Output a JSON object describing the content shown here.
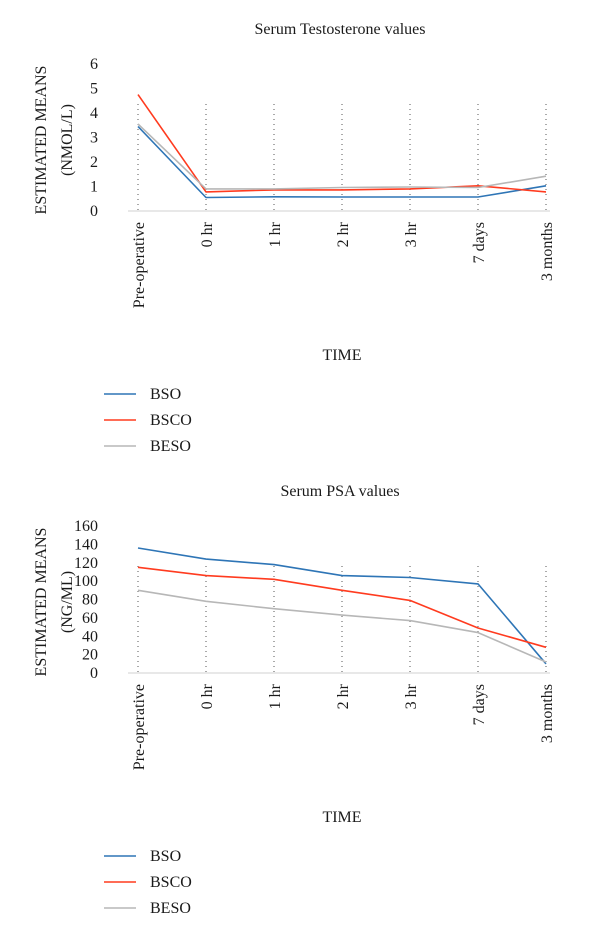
{
  "chart_data": [
    {
      "type": "line",
      "title": "Serum Testosterone values",
      "ylabel": [
        "ESTIMATED MEANS",
        "(NMOL/L)"
      ],
      "xlabel": "TIME",
      "categories": [
        "Pre-operative",
        "0 hr",
        "1 hr",
        "2 hr",
        "3 hr",
        "7 days",
        "3 months"
      ],
      "ylim": [
        0,
        6
      ],
      "yticks": [
        0,
        1,
        2,
        3,
        4,
        5,
        6
      ],
      "series": [
        {
          "name": "BSO",
          "color": "#2e75b6",
          "values": [
            3.45,
            0.55,
            0.58,
            0.57,
            0.57,
            0.57,
            1.03
          ]
        },
        {
          "name": "BSCO",
          "color": "#ff3b1f",
          "values": [
            4.75,
            0.78,
            0.86,
            0.86,
            0.9,
            1.03,
            0.78
          ]
        },
        {
          "name": "BESO",
          "color": "#b7b7b7",
          "values": [
            3.55,
            0.9,
            0.9,
            0.96,
            0.98,
            0.96,
            1.42
          ]
        }
      ],
      "legend": "bottom-left"
    },
    {
      "type": "line",
      "title": "Serum PSA values",
      "ylabel": [
        "ESTIMATED MEANS",
        "(NG/ML)"
      ],
      "xlabel": "TIME",
      "categories": [
        "Pre-operative",
        "0 hr",
        "1 hr",
        "2 hr",
        "3 hr",
        "7 days",
        "3 months"
      ],
      "ylim": [
        0,
        160
      ],
      "yticks": [
        0,
        20,
        40,
        60,
        80,
        100,
        120,
        140,
        160
      ],
      "series": [
        {
          "name": "BSO",
          "color": "#2e75b6",
          "values": [
            136,
            124,
            118,
            106,
            104,
            97,
            10
          ]
        },
        {
          "name": "BSCO",
          "color": "#ff3b1f",
          "values": [
            115,
            106,
            102,
            90,
            79,
            49,
            28
          ]
        },
        {
          "name": "BESO",
          "color": "#b7b7b7",
          "values": [
            90,
            78,
            70,
            63,
            57,
            44,
            12
          ]
        }
      ],
      "legend": "bottom-left"
    }
  ]
}
